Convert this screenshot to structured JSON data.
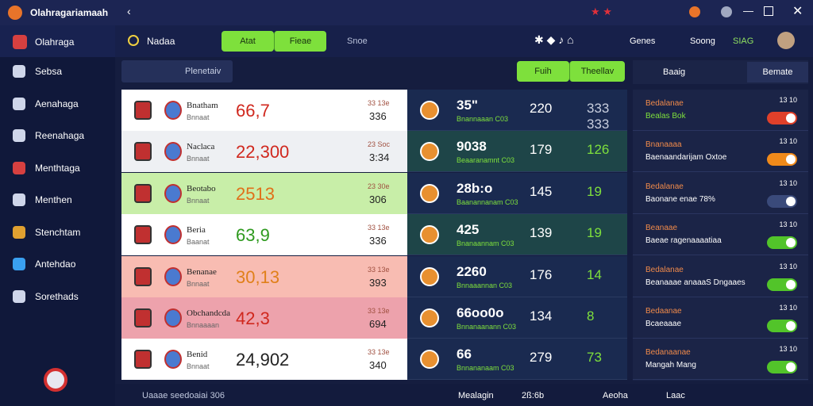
{
  "title_bar": {
    "app_name": "Olahragariamaah"
  },
  "sidebar": {
    "header": "Olahraga",
    "items": [
      "Sebsa",
      "Aenahaga",
      "Reenahaga",
      "Menthtaga",
      "Menthen",
      "Stenchtam",
      "Antehdao",
      "Sorethads"
    ]
  },
  "top_bar": {
    "title": "Nadaa",
    "tabs": [
      "Atat",
      "Fieae",
      "Snoe"
    ],
    "right": [
      "Genes",
      "Soong",
      "SIAG"
    ]
  },
  "filter_bar": {
    "label": "Plenetaiv",
    "buttons": [
      "Fuih",
      "Theellav"
    ]
  },
  "panel_header": {
    "title": "Baaig",
    "button": "Bemate"
  },
  "table": {
    "rows": [
      {
        "name": "Bnatham",
        "sub": "Bnnaat",
        "score": "66,7",
        "score_color": "#d0281e",
        "bg": "#ffffff",
        "s1": "33 13e",
        "s2": "336",
        "rscore": "35\"",
        "rsub": "Bnannaaan C03",
        "n1": "220",
        "n2": "333 333",
        "n2_color": "#c8cede",
        "rbg": "#1a2a50"
      },
      {
        "name": "Naclaca",
        "sub": "Bnnaat",
        "score": "22,300",
        "score_color": "#d0281e",
        "bg": "#eef0f3",
        "s1": "23 Soc",
        "s2": "3:34",
        "rscore": "9038",
        "rsub": "Beaaranamnt C03",
        "n1": "179",
        "n2": "126",
        "n2_color": "#7ee03c",
        "rbg": "#1e4548"
      },
      {
        "name": "Beotabo",
        "sub": "Bnnaat",
        "score": "2513",
        "score_color": "#e0701a",
        "bg": "#c8eea8",
        "s1": "23 30e",
        "s2": "306",
        "rscore": "28b:o",
        "rsub": "Baanannanam C03",
        "n1": "145",
        "n2": "19",
        "n2_color": "#7ee03c",
        "rbg": "#1a2a50"
      },
      {
        "name": "Beria",
        "sub": "Baanat",
        "score": "63,9",
        "score_color": "#2e9a1e",
        "bg": "#ffffff",
        "s1": "33 13e",
        "s2": "336",
        "rscore": "425",
        "rsub": "Bnanaannam C03",
        "n1": "139",
        "n2": "19",
        "n2_color": "#7ee03c",
        "rbg": "#1e4548"
      },
      {
        "name": "Benanae",
        "sub": "Bnnaat",
        "score": "30,13",
        "score_color": "#e0801a",
        "bg": "#f8bcb2",
        "s1": "33 13e",
        "s2": "393",
        "rscore": "2260",
        "rsub": "Bnnaaannan C03",
        "n1": "176",
        "n2": "14",
        "n2_color": "#7ee03c",
        "rbg": "#1a2a50"
      },
      {
        "name": "Obchandcda",
        "sub": "Bnnaaaan",
        "score": "42,3",
        "score_color": "#d0281e",
        "bg": "#eda2ac",
        "s1": "33 13e",
        "s2": "694",
        "rscore": "66oo0o",
        "rsub": "Bnnanaanann C03",
        "n1": "134",
        "n2": "8",
        "n2_color": "#7ee03c",
        "rbg": "#1a2a50"
      },
      {
        "name": "Benid",
        "sub": "Bnnaat",
        "score": "24,902",
        "score_color": "#222222",
        "bg": "#ffffff",
        "s1": "33 13e",
        "s2": "340",
        "rscore": "66",
        "rsub": "Bnnananaam C03",
        "n1": "279",
        "n2": "73",
        "n2_color": "#7ee03c",
        "rbg": "#1a2a50"
      }
    ]
  },
  "cards": [
    {
      "title": "Bedalanae",
      "sub": "Bealas Bok",
      "num": "13 10",
      "toggle_color": "#e0402a"
    },
    {
      "title": "Bnanaaaa",
      "sub": "Baenaandarijam Oxtoe",
      "num": "13 10",
      "toggle_color": "#f08a1a"
    },
    {
      "title": "Bedalanae",
      "sub": "Baonane enae 78%",
      "num": "13 10",
      "toggle_color": "#3a4a7a"
    },
    {
      "title": "Beanaae",
      "sub": "Baeae ragenaaaatiaa",
      "num": "13 10",
      "toggle_color": "#52c42a"
    },
    {
      "title": "Bedalanae",
      "sub": "Beanaaae anaaaS Dngaaes",
      "num": "13 10",
      "toggle_color": "#52c42a"
    },
    {
      "title": "Bedaanae",
      "sub": "Bcaeaaae",
      "num": "13 10",
      "toggle_color": "#52c42a"
    },
    {
      "title": "Bedanaanae",
      "sub": "Mangah Mang",
      "num": "13 10",
      "toggle_color": "#52c42a"
    }
  ],
  "bottom_bar": {
    "left": "Uaaae seedoaiai 306",
    "items": [
      "Mealagin",
      "2ß:6b",
      "Aeoha",
      "Laac"
    ]
  }
}
